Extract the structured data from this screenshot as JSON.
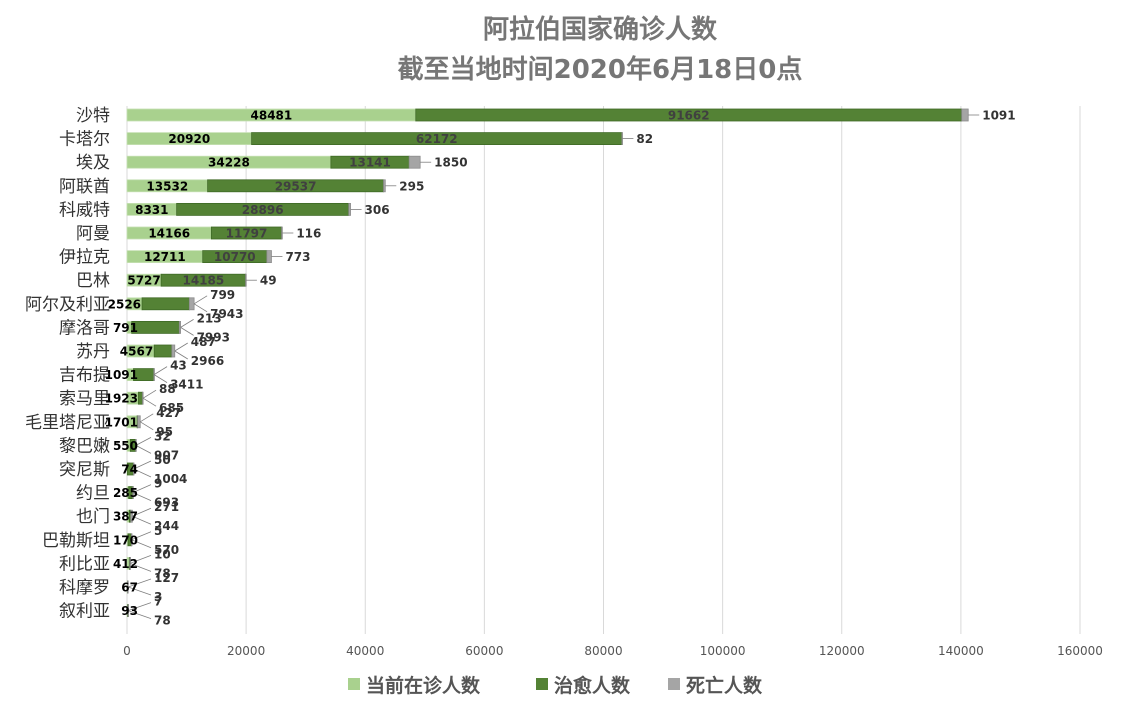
{
  "chart_data": {
    "type": "bar",
    "stacked": true,
    "orientation": "horizontal",
    "title": [
      "阿拉伯国家确诊人数",
      "截至当地时间2020年6月18日0点"
    ],
    "categories": [
      "沙特",
      "卡塔尔",
      "埃及",
      "阿联酋",
      "科威特",
      "阿曼",
      "伊拉克",
      "巴林",
      "阿尔及利亚",
      "摩洛哥",
      "苏丹",
      "吉布提",
      "索马里",
      "毛里塔尼亚",
      "黎巴嫩",
      "突尼斯",
      "约旦",
      "也门",
      "巴勒斯坦",
      "利比亚",
      "科摩罗",
      "叙利亚"
    ],
    "series": [
      {
        "name": "当前在诊人数",
        "color": "#a9d18e",
        "values": [
          48481,
          20920,
          34228,
          13532,
          8331,
          14166,
          12711,
          5727,
          2526,
          791,
          4567,
          1091,
          1923,
          1701,
          550,
          74,
          285,
          387,
          170,
          412,
          67,
          93
        ]
      },
      {
        "name": "治愈人数",
        "color": "#548235",
        "values": [
          91662,
          62172,
          13141,
          29537,
          28896,
          11797,
          10770,
          14185,
          7943,
          7993,
          2966,
          3411,
          685,
          95,
          907,
          1004,
          693,
          244,
          570,
          78,
          3,
          78
        ]
      },
      {
        "name": "死亡人数",
        "color": "#a5a5a5",
        "values": [
          1091,
          82,
          1850,
          295,
          306,
          116,
          773,
          49,
          799,
          213,
          487,
          43,
          88,
          427,
          32,
          50,
          9,
          271,
          5,
          10,
          127,
          7
        ]
      }
    ],
    "xlim": [
      0,
      160000
    ],
    "xticks": [
      0,
      20000,
      40000,
      60000,
      80000,
      100000,
      120000,
      140000,
      160000
    ],
    "xtick_labels": [
      "0",
      "20000",
      "40000",
      "60000",
      "80000",
      "100000",
      "120000",
      "140000",
      "160000"
    ],
    "grid": true,
    "legend_position": "bottom"
  }
}
